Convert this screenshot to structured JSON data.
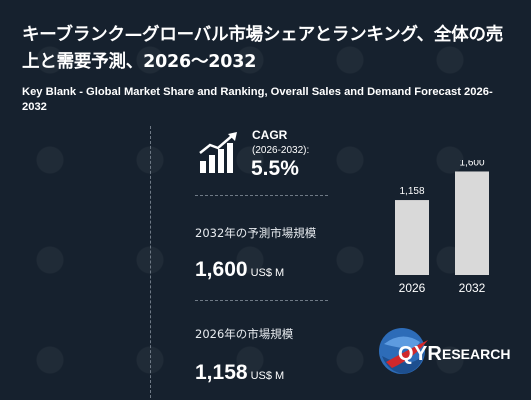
{
  "header": {
    "title_jp": "キーブランク—グローバル市場シェアとランキング、全体の売上と需要予測、2026～2032",
    "title_en": "Key Blank - Global Market Share and Ranking, Overall Sales and Demand Forecast 2026-2032"
  },
  "cagr": {
    "label": "CAGR",
    "period": "(2026-2032):",
    "value": "5.5%",
    "icon": "growth-chart-icon"
  },
  "stat_2032": {
    "label": "2032年の予測市場規模",
    "value": "1,600",
    "unit": "US$ M"
  },
  "stat_2026": {
    "label": "2026年の市場規模",
    "value": "1,158",
    "unit": "US$ M"
  },
  "logo": {
    "brand_q": "Q",
    "brand_yr": "YR",
    "brand_rest": "ESEARCH"
  },
  "colors": {
    "background": "#16212e",
    "bar": "#d9d9d9",
    "text": "#ffffff",
    "logo_blue": "#2d6cb8",
    "logo_red": "#d0282b"
  },
  "chart_data": {
    "type": "bar",
    "categories": [
      "2026",
      "2032"
    ],
    "values": [
      1158,
      1600
    ],
    "value_labels": [
      "1,158",
      "1,600"
    ],
    "ylim": [
      0,
      1700
    ],
    "title": "",
    "xlabel": "",
    "ylabel": "",
    "grid": false
  }
}
